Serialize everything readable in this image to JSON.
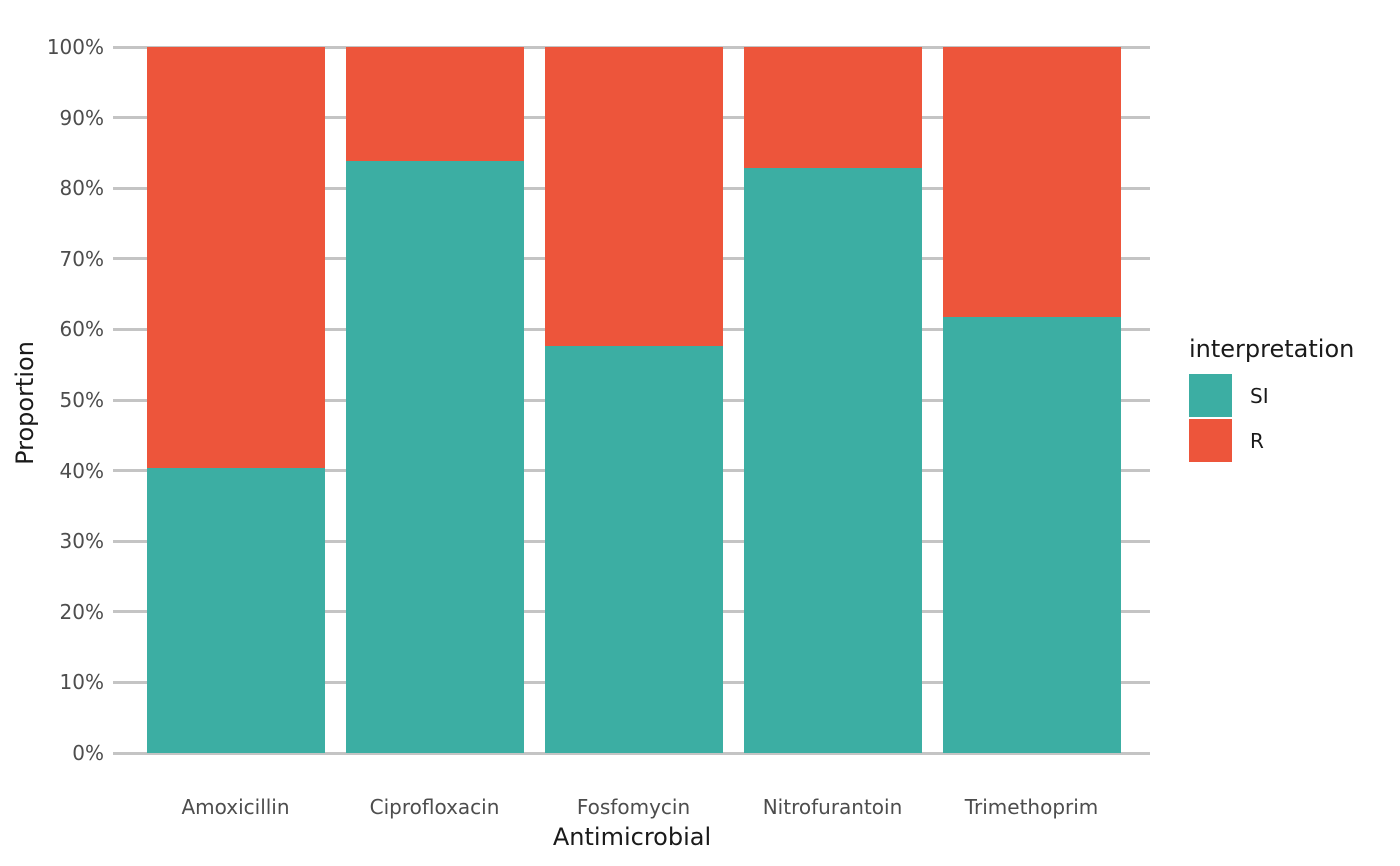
{
  "chart_data": {
    "type": "bar",
    "stacked": true,
    "percent_stacked": true,
    "title": "",
    "xlabel": "Antimicrobial",
    "ylabel": "Proportion",
    "categories": [
      "Amoxicillin",
      "Ciprofloxacin",
      "Fosfomycin",
      "Nitrofurantoin",
      "Trimethoprim"
    ],
    "series": [
      {
        "name": "SI",
        "color": "#3CAEA3",
        "values": [
          40.4,
          83.8,
          57.7,
          82.8,
          61.8
        ]
      },
      {
        "name": "R",
        "color": "#ED553B",
        "values": [
          59.6,
          16.2,
          42.3,
          17.2,
          38.2
        ]
      }
    ],
    "ylim": [
      0,
      100
    ],
    "y_ticks": [
      0,
      10,
      20,
      30,
      40,
      50,
      60,
      70,
      80,
      90,
      100
    ],
    "y_tick_labels": [
      "0%",
      "10%",
      "20%",
      "30%",
      "40%",
      "50%",
      "60%",
      "70%",
      "80%",
      "90%",
      "100%"
    ],
    "legend": {
      "title": "interpretation",
      "position": "right",
      "items": [
        "SI",
        "R"
      ]
    },
    "grid": "horizontal-major",
    "colors": {
      "gridline": "#C4C4C4",
      "tick_label": "#4D4D4D",
      "axis_title": "#1A1A1A",
      "legend_text": "#1A1A1A",
      "background": "#FFFFFF"
    }
  }
}
